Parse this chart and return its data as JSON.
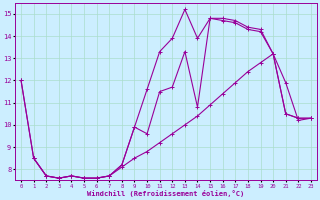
{
  "xlabel": "Windchill (Refroidissement éolien,°C)",
  "bg_color": "#cceeff",
  "grid_color": "#aaddcc",
  "line_color": "#990099",
  "xlim": [
    -0.5,
    23.5
  ],
  "ylim": [
    7.5,
    15.5
  ],
  "xticks": [
    0,
    1,
    2,
    3,
    4,
    5,
    6,
    7,
    8,
    9,
    10,
    11,
    12,
    13,
    14,
    15,
    16,
    17,
    18,
    19,
    20,
    21,
    22,
    23
  ],
  "yticks": [
    8,
    9,
    10,
    11,
    12,
    13,
    14,
    15
  ],
  "line1_x": [
    0,
    1,
    2,
    3,
    4,
    5,
    6,
    7,
    8,
    9,
    10,
    11,
    12,
    13,
    14,
    15,
    16,
    17,
    18,
    19,
    20,
    21,
    22,
    23
  ],
  "line1_y": [
    12.0,
    8.5,
    7.7,
    7.6,
    7.7,
    7.6,
    7.6,
    7.7,
    8.2,
    9.9,
    11.6,
    13.3,
    13.9,
    15.2,
    13.9,
    14.8,
    14.8,
    14.7,
    14.4,
    14.3,
    13.2,
    11.9,
    10.2,
    10.3
  ],
  "line2_x": [
    1,
    2,
    3,
    4,
    5,
    6,
    7,
    8,
    9,
    10,
    11,
    12,
    13,
    14,
    15,
    16,
    17,
    18,
    19,
    20,
    21,
    22,
    23
  ],
  "line2_y": [
    8.5,
    7.7,
    7.6,
    7.7,
    7.6,
    7.6,
    7.7,
    8.1,
    8.5,
    8.8,
    9.2,
    9.6,
    10.0,
    10.4,
    10.9,
    11.4,
    11.9,
    12.4,
    12.8,
    13.2,
    10.5,
    10.3,
    10.3
  ],
  "line3_x": [
    0,
    1,
    2,
    3,
    4,
    5,
    6,
    7,
    8,
    9,
    10,
    11,
    12,
    13,
    14,
    15,
    16,
    17,
    18,
    19,
    20,
    21,
    22,
    23
  ],
  "line3_y": [
    12.0,
    8.5,
    7.7,
    7.6,
    7.7,
    7.6,
    7.6,
    7.7,
    8.2,
    9.9,
    9.6,
    11.5,
    11.7,
    13.3,
    10.8,
    14.8,
    14.7,
    14.6,
    14.3,
    14.2,
    13.2,
    10.5,
    10.3,
    10.3
  ]
}
